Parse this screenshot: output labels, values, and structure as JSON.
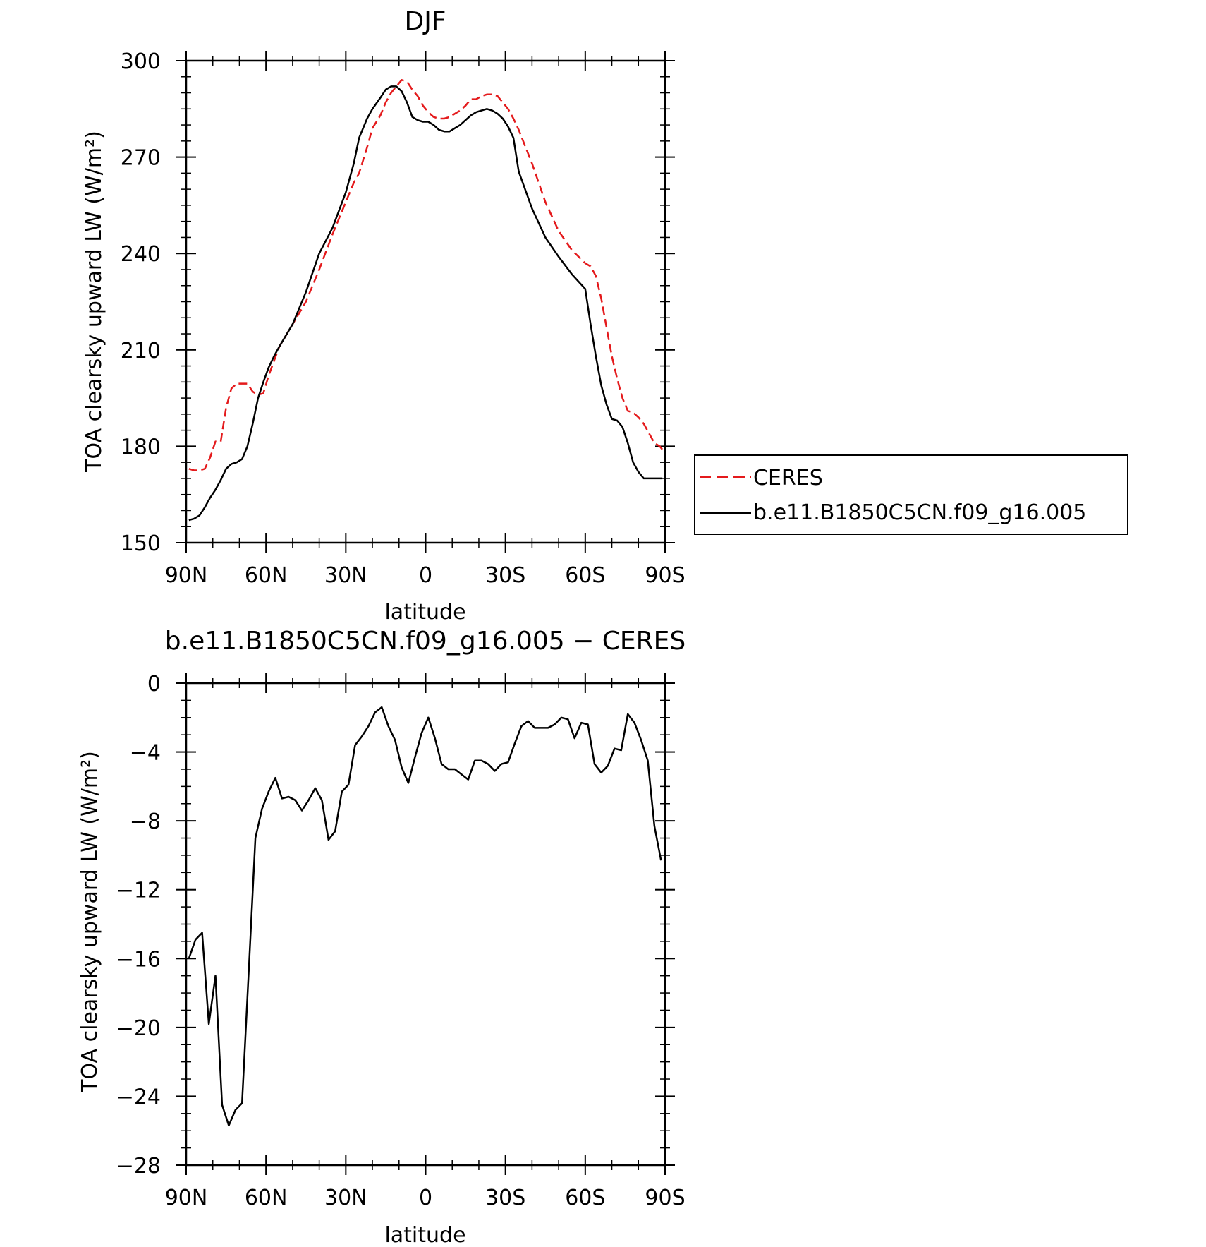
{
  "chart_data": [
    {
      "type": "line",
      "title": "DJF",
      "xlabel": "latitude",
      "ylabel": "TOA clearsky upward LW (W/m²)",
      "xlim": [
        90,
        -90
      ],
      "ylim": [
        150,
        300
      ],
      "xticks": [
        90,
        60,
        30,
        0,
        -30,
        -60,
        -90
      ],
      "xticklabels": [
        "90N",
        "60N",
        "30N",
        "0",
        "30S",
        "60S",
        "90S"
      ],
      "yticks": [
        150,
        180,
        210,
        240,
        270,
        300
      ],
      "yticklabels": [
        "150",
        "180",
        "210",
        "240",
        "270",
        "300"
      ],
      "legend": "right",
      "series": [
        {
          "name": "CERES",
          "color": "#e41a1c",
          "dash": "dashed",
          "x": [
            89,
            87,
            85,
            83,
            81,
            79,
            77,
            75,
            73,
            71,
            69,
            67,
            65,
            63,
            61,
            59,
            55,
            50,
            45,
            40,
            35,
            30,
            27,
            25,
            22,
            20,
            17,
            15,
            13,
            11,
            9,
            7,
            5,
            3,
            1,
            -1,
            -3,
            -5,
            -7,
            -9,
            -11,
            -13,
            -15,
            -17,
            -19,
            -21,
            -23,
            -25,
            -27,
            -29,
            -31,
            -33,
            -35,
            -40,
            -45,
            -50,
            -55,
            -60,
            -62,
            -64,
            -66,
            -68,
            -70,
            -72,
            -74,
            -76,
            -78,
            -80,
            -82,
            -84,
            -86,
            -88,
            -89
          ],
          "y": [
            173,
            172.5,
            172.5,
            173,
            176.5,
            181.5,
            181.5,
            192,
            198,
            199.5,
            199.5,
            199.5,
            197,
            196,
            196.5,
            202,
            211,
            218,
            225,
            235,
            246,
            256,
            262,
            265,
            273,
            279,
            283,
            287,
            290,
            292,
            294,
            293.5,
            291,
            289,
            286,
            284,
            282.5,
            282,
            282,
            282.5,
            283.5,
            284.5,
            286,
            288,
            288,
            289,
            289.5,
            289.5,
            289,
            287,
            285,
            282,
            278.5,
            268,
            256,
            247,
            241,
            237,
            236,
            233,
            226,
            217,
            208,
            201,
            195,
            191,
            190.5,
            189,
            187,
            184,
            181,
            180,
            179
          ]
        },
        {
          "name": "b.e11.B1850C5CN.f09_g16.005",
          "color": "#000000",
          "dash": "solid",
          "x": [
            89,
            87,
            85,
            83,
            81,
            79,
            77,
            75,
            73,
            71,
            69,
            67,
            65,
            63,
            61,
            59,
            57,
            55,
            50,
            45,
            40,
            35,
            30,
            27,
            25,
            22,
            20,
            17,
            15,
            13,
            11,
            9,
            7,
            5,
            3,
            1,
            -1,
            -3,
            -5,
            -7,
            -9,
            -11,
            -13,
            -15,
            -17,
            -19,
            -21,
            -23,
            -25,
            -27,
            -29,
            -31,
            -33,
            -35,
            -40,
            -45,
            -50,
            -55,
            -60,
            -62,
            -64,
            -66,
            -68,
            -70,
            -72,
            -74,
            -76,
            -78,
            -80,
            -82,
            -84,
            -86,
            -88,
            -89
          ],
          "y": [
            157,
            157.5,
            158.5,
            161,
            164,
            166.5,
            169.5,
            173,
            174.5,
            175,
            176,
            180,
            187,
            195,
            200,
            204.5,
            208,
            211,
            218,
            228,
            240,
            248,
            259,
            268,
            276,
            282,
            285,
            288.5,
            291,
            292,
            292,
            290.5,
            287,
            282.5,
            281.5,
            281,
            281,
            280,
            278.5,
            278,
            278,
            279,
            280,
            281.5,
            283,
            284,
            284.5,
            285,
            284.5,
            283.5,
            282,
            279.5,
            276,
            265.5,
            254,
            245,
            239,
            233.5,
            229,
            218,
            208,
            199,
            193,
            188.5,
            188,
            186,
            181,
            175,
            172,
            170,
            170,
            170,
            170,
            170
          ]
        }
      ]
    },
    {
      "type": "line",
      "title": "b.e11.B1850C5CN.f09_g16.005 − CERES",
      "xlabel": "latitude",
      "ylabel": "TOA clearsky upward LW (W/m²)",
      "xlim": [
        90,
        -90
      ],
      "ylim": [
        -28,
        0
      ],
      "xticks": [
        90,
        60,
        30,
        0,
        -30,
        -60,
        -90
      ],
      "xticklabels": [
        "90N",
        "60N",
        "30N",
        "0",
        "30S",
        "60S",
        "90S"
      ],
      "yticks": [
        -28,
        -24,
        -20,
        -16,
        -12,
        -8,
        -4,
        0
      ],
      "yticklabels": [
        "−28",
        "−24",
        "−20",
        "−16",
        "−12",
        "−8",
        "−4",
        "0"
      ],
      "series": [
        {
          "color": "#000000",
          "dash": "solid",
          "x": [
            89,
            86.5,
            84,
            81.5,
            79,
            76.5,
            74,
            71.5,
            69,
            66.5,
            64,
            61.5,
            59,
            56.5,
            54,
            51.5,
            49,
            46.5,
            44,
            41.5,
            39,
            36.5,
            34,
            31.5,
            29,
            26.5,
            24,
            21.5,
            19,
            16.5,
            14,
            11.5,
            9,
            6.5,
            4,
            1.5,
            -1,
            -3.5,
            -6,
            -8.5,
            -11,
            -13.5,
            -16,
            -18.5,
            -21,
            -23.5,
            -26,
            -28.5,
            -31,
            -33.5,
            -36,
            -38.5,
            -41,
            -43.5,
            -46,
            -48.5,
            -51,
            -53.5,
            -56,
            -58.5,
            -61,
            -63.5,
            -66,
            -68.5,
            -71,
            -73.5,
            -76,
            -78.5,
            -81,
            -83.5,
            -86,
            -88.5
          ],
          "y": [
            -16,
            -14.9,
            -14.5,
            -19.8,
            -17,
            -24.5,
            -25.7,
            -24.8,
            -24.4,
            -16.8,
            -9,
            -7.3,
            -6.3,
            -5.5,
            -6.7,
            -6.6,
            -6.8,
            -7.4,
            -6.8,
            -6.1,
            -6.8,
            -9.1,
            -8.6,
            -6.3,
            -5.9,
            -3.6,
            -3.1,
            -2.5,
            -1.7,
            -1.4,
            -2.5,
            -3.3,
            -4.9,
            -5.8,
            -4.3,
            -2.9,
            -2.0,
            -3.2,
            -4.7,
            -5.0,
            -5.0,
            -5.3,
            -5.6,
            -4.5,
            -4.5,
            -4.7,
            -5.1,
            -4.7,
            -4.6,
            -3.5,
            -2.5,
            -2.2,
            -2.6,
            -2.6,
            -2.6,
            -2.4,
            -2.0,
            -2.1,
            -3.2,
            -2.3,
            -2.4,
            -4.7,
            -5.2,
            -4.8,
            -3.8,
            -3.9,
            -1.8,
            -2.3,
            -3.3,
            -4.5,
            -8.3,
            -10.3
          ]
        }
      ]
    }
  ]
}
